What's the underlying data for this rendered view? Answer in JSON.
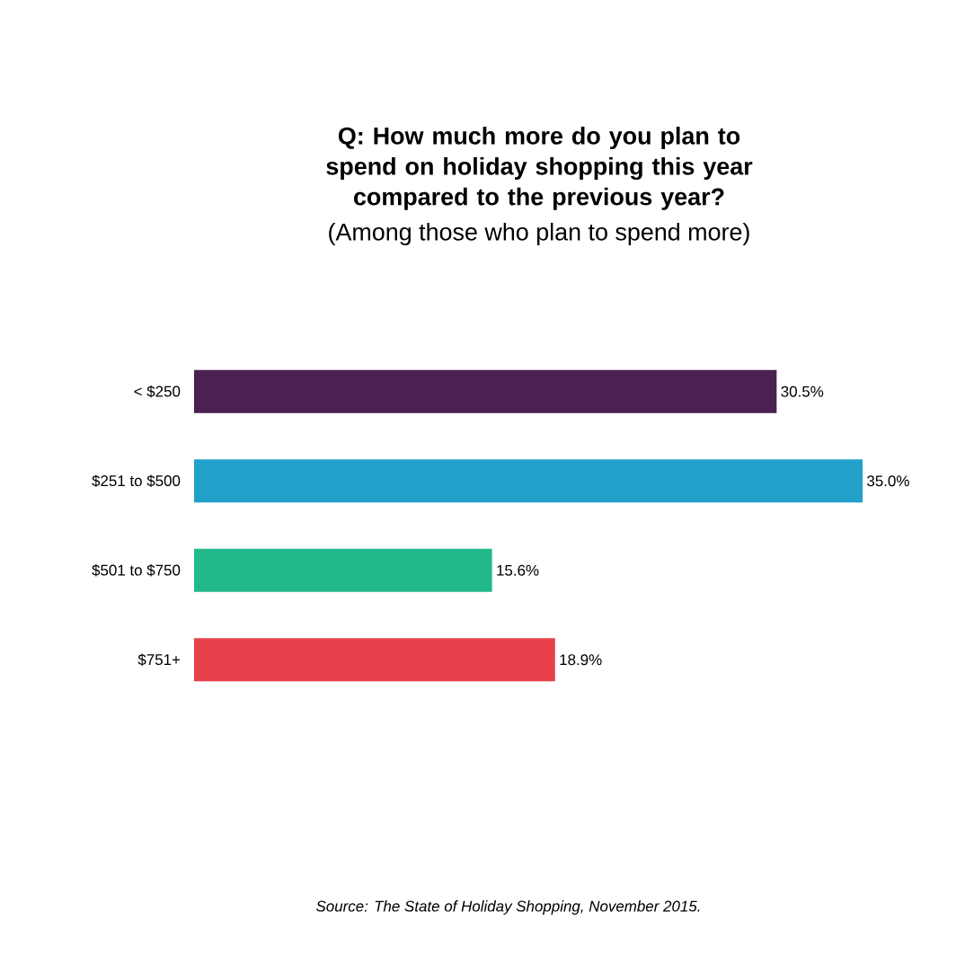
{
  "chart_data": {
    "type": "bar",
    "orientation": "horizontal",
    "title": "Q: How much **more** do you plan to spend on holiday shopping this year compared to the previous year?",
    "subtitle": "(Among those who plan to spend more)",
    "categories": [
      "< $250",
      "$251 to $500",
      "$501 to $750",
      "$751+"
    ],
    "values": [
      30.5,
      35.0,
      15.6,
      18.9
    ],
    "value_labels": [
      "30.5%",
      "35.0%",
      "15.6%",
      "18.9%"
    ],
    "colors": [
      "#4a2150",
      "#21a0c9",
      "#21b98b",
      "#e8414b"
    ],
    "annotations": [
      "Source: The State of Holiday Shopping, November 2015."
    ]
  }
}
